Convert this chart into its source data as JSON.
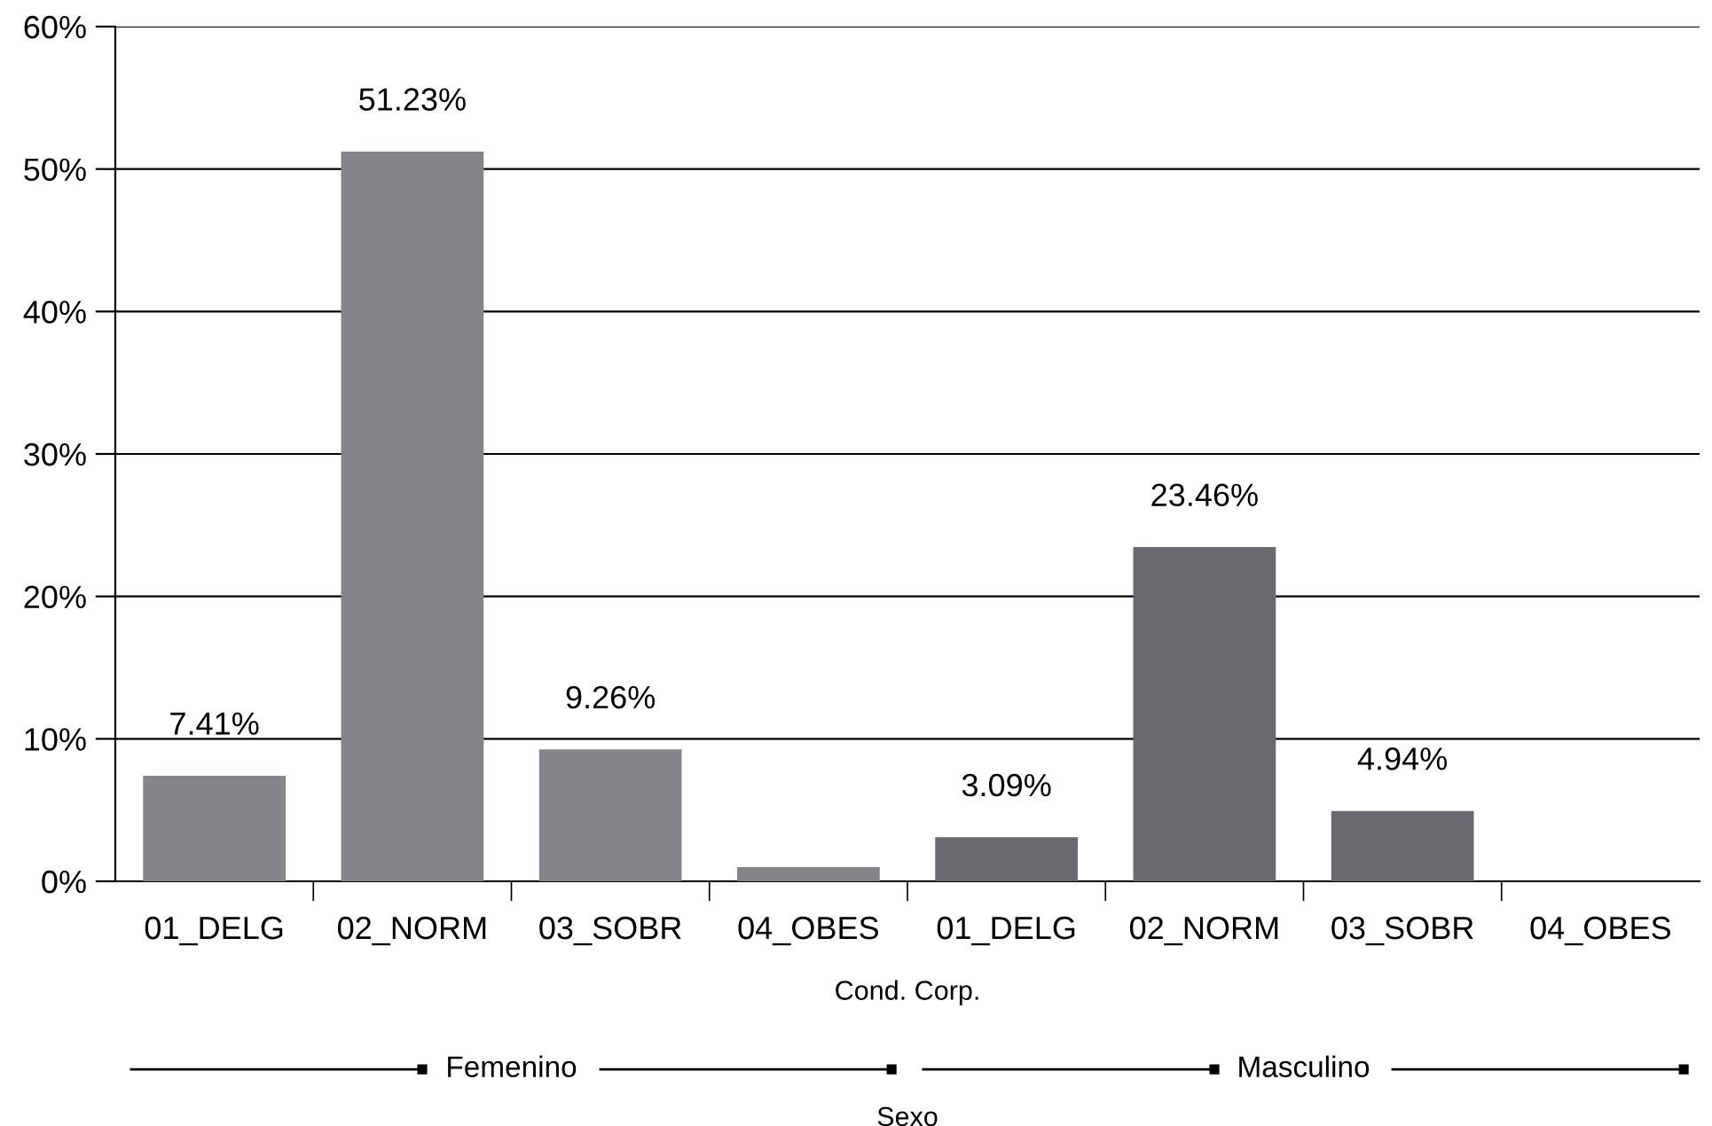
{
  "chart_data": {
    "type": "bar",
    "categories": [
      "01_DELG",
      "02_NORM",
      "03_SOBR",
      "04_OBES",
      "01_DELG",
      "02_NORM",
      "03_SOBR",
      "04_OBES"
    ],
    "series": [
      {
        "colors": [
          "#848589",
          "#848589",
          "#848589",
          "#848589",
          "#696a6f",
          "#696a6f",
          "#696a6f",
          "#696a6f"
        ],
        "values": [
          7.41,
          51.23,
          9.26,
          1.0,
          3.09,
          23.46,
          4.94,
          0
        ],
        "value_labels": [
          "7.41%",
          "51.23%",
          "9.26%",
          null,
          "3.09%",
          "23.46%",
          "4.94%",
          null
        ]
      }
    ],
    "xlabel": "Cond. Corp.",
    "annotations": [
      "Femenino",
      "Masculino",
      "Sexo"
    ],
    "ylim": [
      0,
      60
    ],
    "yticks": [
      {
        "value": 0,
        "label": "0%"
      },
      {
        "value": 10,
        "label": "10%"
      },
      {
        "value": 20,
        "label": "20%"
      },
      {
        "value": 30,
        "label": "30%"
      },
      {
        "value": 40,
        "label": "40%"
      },
      {
        "value": 50,
        "label": "50%"
      },
      {
        "value": 60,
        "label": "60%"
      }
    ],
    "grid": "y",
    "legend": false
  }
}
